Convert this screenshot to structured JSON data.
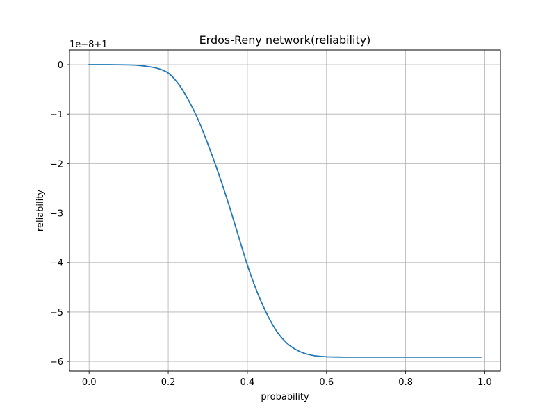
{
  "chart_data": {
    "type": "line",
    "title": "Erdos-Reny network(reliability)",
    "xlabel": "probability",
    "ylabel": "reliability",
    "offset_label": "1e−8+1",
    "xlim": [
      -0.0495,
      1.0395
    ],
    "ylim": [
      -6.195,
      0.295
    ],
    "xticks": [
      0.0,
      0.2,
      0.4,
      0.6,
      0.8,
      1.0
    ],
    "xtick_labels": [
      "0.0",
      "0.2",
      "0.4",
      "0.6",
      "0.8",
      "1.0"
    ],
    "yticks": [
      0,
      -1,
      -2,
      -3,
      -4,
      -5,
      -6
    ],
    "ytick_labels": [
      "0",
      "−1",
      "−2",
      "−3",
      "−4",
      "−5",
      "−6"
    ],
    "grid": true,
    "series": [
      {
        "color": "#1f77b4",
        "x": [
          0.0,
          0.05,
          0.1,
          0.125,
          0.15,
          0.175,
          0.2,
          0.225,
          0.25,
          0.275,
          0.3,
          0.325,
          0.35,
          0.375,
          0.4,
          0.425,
          0.45,
          0.475,
          0.5,
          0.525,
          0.55,
          0.575,
          0.6,
          0.625,
          0.65,
          0.7,
          0.8,
          0.9,
          0.99
        ],
        "values": [
          0.0,
          0.0,
          -0.005,
          -0.015,
          -0.04,
          -0.08,
          -0.17,
          -0.38,
          -0.7,
          -1.1,
          -1.6,
          -2.15,
          -2.75,
          -3.4,
          -4.05,
          -4.6,
          -5.05,
          -5.4,
          -5.63,
          -5.77,
          -5.85,
          -5.89,
          -5.905,
          -5.91,
          -5.912,
          -5.912,
          -5.912,
          -5.912,
          -5.912
        ]
      }
    ]
  }
}
